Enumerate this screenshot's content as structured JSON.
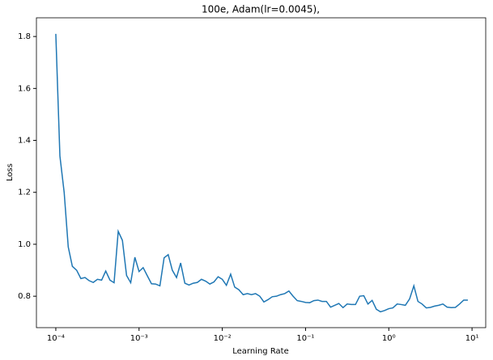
{
  "chart_data": {
    "type": "line",
    "title": "100e, Adam(lr=0.0045),",
    "xlabel": "Learning Rate",
    "ylabel": "Loss",
    "xscale": "log",
    "grid": false,
    "color": "#1f77b4",
    "x": [
      0.0001,
      0.000112,
      0.000126,
      0.000141,
      0.000158,
      0.000178,
      0.0002,
      0.000224,
      0.000251,
      0.000282,
      0.000316,
      0.000355,
      0.000398,
      0.000447,
      0.000501,
      0.000562,
      0.000631,
      0.000708,
      0.000794,
      0.000891,
      0.001,
      0.00112,
      0.00126,
      0.00141,
      0.00158,
      0.00178,
      0.002,
      0.00224,
      0.00251,
      0.00282,
      0.00316,
      0.00355,
      0.00398,
      0.00447,
      0.00501,
      0.00562,
      0.00631,
      0.00708,
      0.00794,
      0.00891,
      0.01,
      0.0112,
      0.0126,
      0.0141,
      0.0158,
      0.0178,
      0.02,
      0.0224,
      0.0251,
      0.0282,
      0.0316,
      0.0355,
      0.0398,
      0.0447,
      0.0501,
      0.0562,
      0.0631,
      0.0708,
      0.0794,
      0.0891,
      0.1,
      0.112,
      0.126,
      0.141,
      0.158,
      0.178,
      0.2,
      0.224,
      0.251,
      0.282,
      0.316,
      0.355,
      0.398,
      0.447,
      0.501,
      0.562,
      0.631,
      0.708,
      0.794,
      0.891,
      1,
      1.12,
      1.26,
      1.41,
      1.58,
      1.78,
      2,
      2.24,
      2.51,
      2.82,
      3.16,
      3.55,
      3.98,
      4.47,
      5.01,
      5.62,
      6.31,
      7.08,
      7.94,
      8.91
    ],
    "values": [
      1.81,
      1.34,
      1.2,
      0.99,
      0.915,
      0.9,
      0.868,
      0.872,
      0.86,
      0.853,
      0.865,
      0.862,
      0.897,
      0.862,
      0.852,
      1.05,
      1.015,
      0.88,
      0.852,
      0.95,
      0.895,
      0.91,
      0.878,
      0.848,
      0.847,
      0.84,
      0.948,
      0.96,
      0.9,
      0.872,
      0.928,
      0.85,
      0.843,
      0.85,
      0.853,
      0.865,
      0.858,
      0.847,
      0.855,
      0.875,
      0.865,
      0.842,
      0.885,
      0.835,
      0.825,
      0.806,
      0.81,
      0.806,
      0.81,
      0.8,
      0.778,
      0.787,
      0.798,
      0.8,
      0.806,
      0.81,
      0.82,
      0.8,
      0.783,
      0.78,
      0.776,
      0.775,
      0.783,
      0.785,
      0.78,
      0.78,
      0.758,
      0.765,
      0.772,
      0.756,
      0.77,
      0.768,
      0.768,
      0.8,
      0.802,
      0.77,
      0.784,
      0.75,
      0.74,
      0.745,
      0.752,
      0.755,
      0.77,
      0.768,
      0.765,
      0.79,
      0.84,
      0.78,
      0.77,
      0.755,
      0.757,
      0.762,
      0.765,
      0.77,
      0.758,
      0.756,
      0.757,
      0.77,
      0.785,
      0.785
    ],
    "xlim": [
      5.85e-05,
      14.6
    ],
    "xticks": [
      {
        "value": 0.0001,
        "label": "10⁻⁴"
      },
      {
        "value": 0.001,
        "label": "10⁻³"
      },
      {
        "value": 0.01,
        "label": "10⁻²"
      },
      {
        "value": 0.1,
        "label": "10⁻¹"
      },
      {
        "value": 1,
        "label": "10⁰"
      },
      {
        "value": 10,
        "label": "10¹"
      }
    ],
    "ylim": [
      0.679,
      1.872
    ],
    "yticks": [
      0.8,
      {
        "value": 1,
        "label": "1.0"
      },
      1.2,
      1.4,
      1.6,
      1.8
    ]
  }
}
